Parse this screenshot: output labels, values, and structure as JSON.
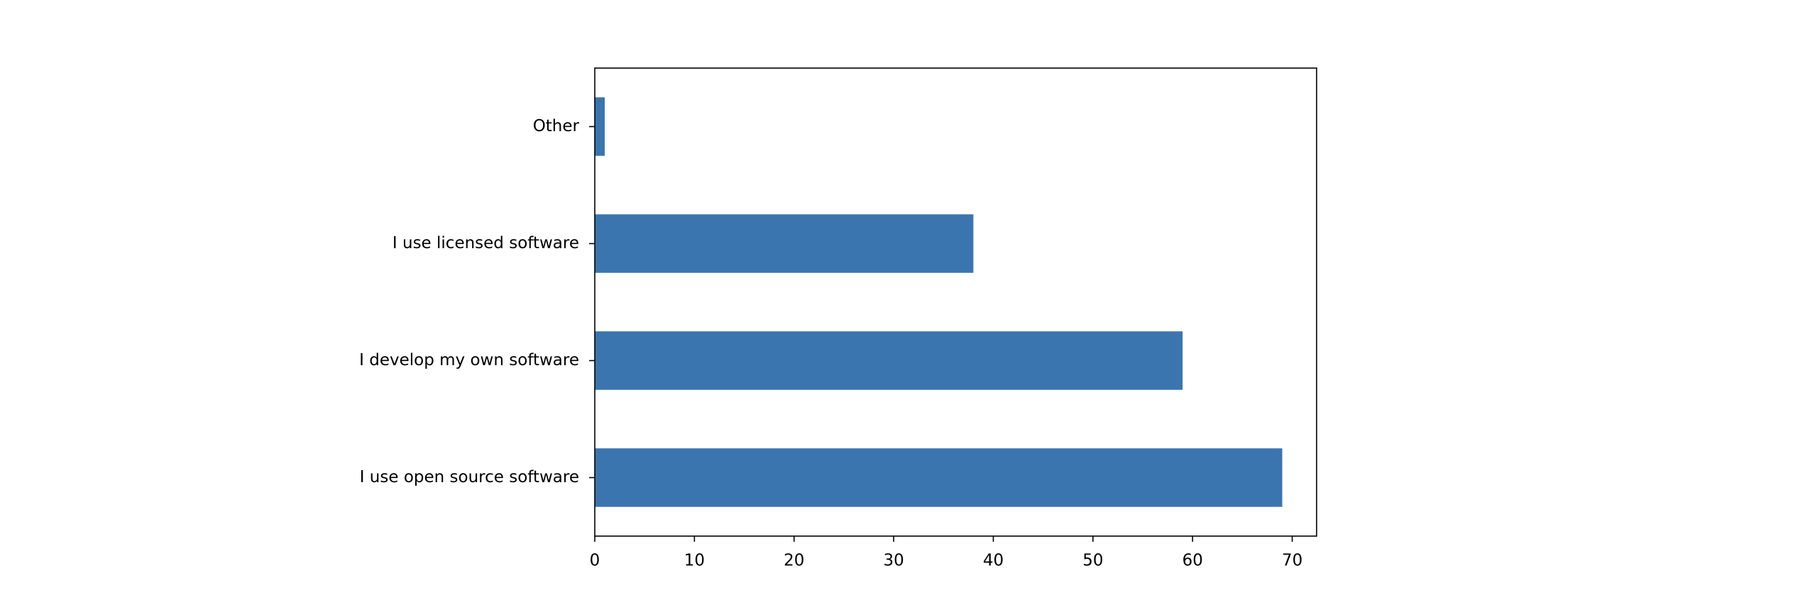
{
  "chart_data": {
    "type": "barh",
    "categories": [
      "I use open source software",
      "I develop my own software",
      "I use licensed software",
      "Other"
    ],
    "values": [
      69,
      59,
      38,
      1
    ],
    "color": "#3b75af",
    "xlim": [
      0,
      72.45
    ],
    "xticks": [
      0,
      10,
      20,
      30,
      40,
      50,
      60,
      70
    ],
    "grid": false
  }
}
